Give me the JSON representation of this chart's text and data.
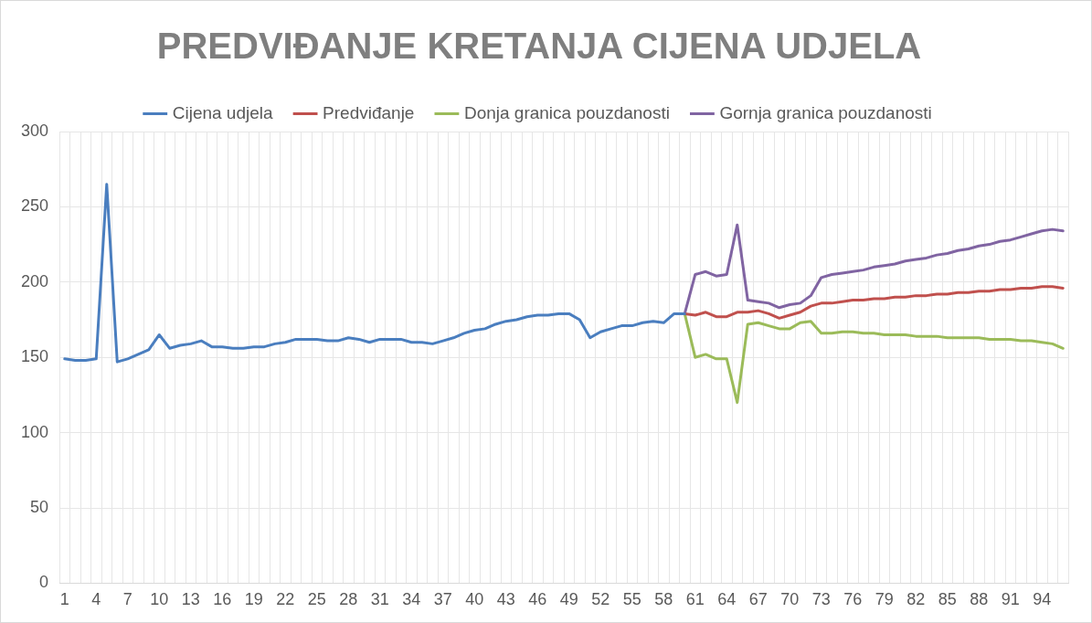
{
  "chart_data": {
    "type": "line",
    "title": "PREDVIĐANJE KRETANJA CIJENA UDJELA",
    "categories": [
      "1",
      null,
      null,
      "4",
      null,
      null,
      "7",
      null,
      null,
      "10",
      null,
      null,
      "13",
      null,
      null,
      "16",
      null,
      null,
      "19",
      null,
      null,
      "22",
      null,
      null,
      "25",
      null,
      null,
      "28",
      null,
      null,
      "31",
      null,
      null,
      "34",
      null,
      null,
      "37",
      null,
      null,
      "40",
      null,
      null,
      "43",
      null,
      null,
      "46",
      null,
      null,
      "49",
      null,
      null,
      "52",
      null,
      null,
      "55",
      null,
      null,
      "58",
      null,
      null,
      "61",
      null,
      null,
      "64",
      null,
      null,
      "67",
      null,
      null,
      "70",
      null,
      null,
      "73",
      null,
      null,
      "76",
      null,
      null,
      "79",
      null,
      null,
      "82",
      null,
      null,
      "85",
      null,
      null,
      "88",
      null,
      null,
      "91",
      null,
      null,
      "94",
      null,
      null
    ],
    "series": [
      {
        "name": "Cijena udjela",
        "color": "#4a7ebf",
        "values": [
          149,
          148,
          148,
          149,
          265,
          147,
          149,
          152,
          155,
          165,
          156,
          158,
          159,
          161,
          157,
          157,
          156,
          156,
          157,
          157,
          159,
          160,
          162,
          162,
          162,
          161,
          161,
          163,
          162,
          160,
          162,
          162,
          162,
          160,
          160,
          159,
          161,
          163,
          166,
          168,
          169,
          172,
          174,
          175,
          177,
          178,
          178,
          179,
          179,
          175,
          163,
          167,
          169,
          171,
          171,
          173,
          174,
          173,
          179,
          179,
          null,
          null,
          null,
          null,
          null,
          null,
          null,
          null,
          null,
          null,
          null,
          null,
          null,
          null,
          null,
          null,
          null,
          null,
          null,
          null,
          null,
          null,
          null,
          null,
          null,
          null,
          null,
          null,
          null,
          null,
          null,
          null,
          null,
          null,
          null,
          null
        ]
      },
      {
        "name": "Predviđanje",
        "color": "#c0504d",
        "values": [
          null,
          null,
          null,
          null,
          null,
          null,
          null,
          null,
          null,
          null,
          null,
          null,
          null,
          null,
          null,
          null,
          null,
          null,
          null,
          null,
          null,
          null,
          null,
          null,
          null,
          null,
          null,
          null,
          null,
          null,
          null,
          null,
          null,
          null,
          null,
          null,
          null,
          null,
          null,
          null,
          null,
          null,
          null,
          null,
          null,
          null,
          null,
          null,
          null,
          null,
          null,
          null,
          null,
          null,
          null,
          null,
          null,
          null,
          null,
          179,
          178,
          180,
          177,
          177,
          180,
          180,
          181,
          179,
          176,
          178,
          180,
          184,
          186,
          186,
          187,
          188,
          188,
          189,
          189,
          190,
          190,
          191,
          191,
          192,
          192,
          193,
          193,
          194,
          194,
          195,
          195,
          196,
          196,
          197,
          197,
          196
        ]
      },
      {
        "name": "Donja granica pouzdanosti",
        "color": "#9bbb59",
        "values": [
          null,
          null,
          null,
          null,
          null,
          null,
          null,
          null,
          null,
          null,
          null,
          null,
          null,
          null,
          null,
          null,
          null,
          null,
          null,
          null,
          null,
          null,
          null,
          null,
          null,
          null,
          null,
          null,
          null,
          null,
          null,
          null,
          null,
          null,
          null,
          null,
          null,
          null,
          null,
          null,
          null,
          null,
          null,
          null,
          null,
          null,
          null,
          null,
          null,
          null,
          null,
          null,
          null,
          null,
          null,
          null,
          null,
          null,
          null,
          179,
          150,
          152,
          149,
          149,
          120,
          172,
          173,
          171,
          169,
          169,
          173,
          174,
          166,
          166,
          167,
          167,
          166,
          166,
          165,
          165,
          165,
          164,
          164,
          164,
          163,
          163,
          163,
          163,
          162,
          162,
          162,
          161,
          161,
          160,
          159,
          156
        ]
      },
      {
        "name": "Gornja granica pouzdanosti",
        "color": "#8064a2",
        "values": [
          null,
          null,
          null,
          null,
          null,
          null,
          null,
          null,
          null,
          null,
          null,
          null,
          null,
          null,
          null,
          null,
          null,
          null,
          null,
          null,
          null,
          null,
          null,
          null,
          null,
          null,
          null,
          null,
          null,
          null,
          null,
          null,
          null,
          null,
          null,
          null,
          null,
          null,
          null,
          null,
          null,
          null,
          null,
          null,
          null,
          null,
          null,
          null,
          null,
          null,
          null,
          null,
          null,
          null,
          null,
          null,
          null,
          null,
          null,
          179,
          205,
          207,
          204,
          205,
          238,
          188,
          187,
          186,
          183,
          185,
          186,
          191,
          203,
          205,
          206,
          207,
          208,
          210,
          211,
          212,
          214,
          215,
          216,
          218,
          219,
          221,
          222,
          224,
          225,
          227,
          228,
          230,
          232,
          234,
          235,
          234
        ]
      }
    ],
    "ylim": [
      0,
      300
    ],
    "yticks": [
      0,
      50,
      100,
      150,
      200,
      250,
      300
    ],
    "grid": true,
    "legend": "top",
    "marker": "none",
    "line_style": "solid"
  }
}
